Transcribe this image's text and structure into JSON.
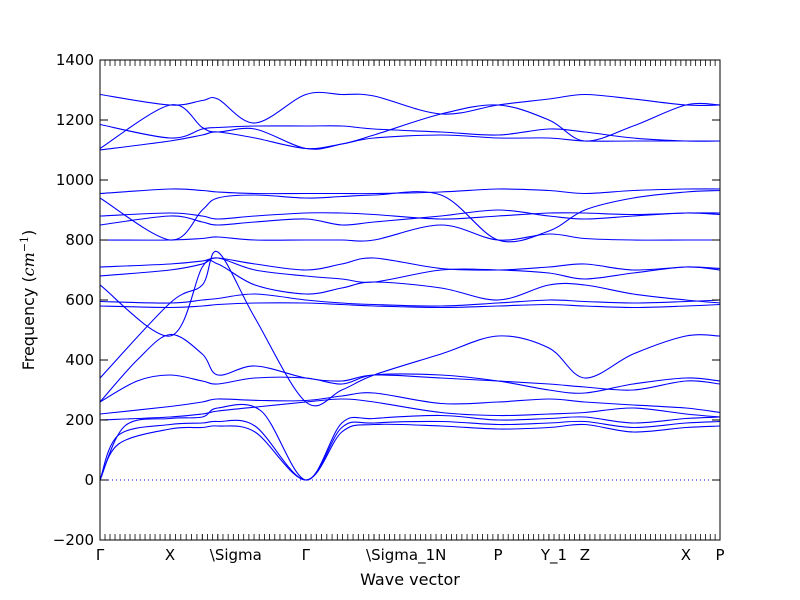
{
  "chart_data": {
    "type": "line",
    "title": "",
    "xlabel": "Wave vector",
    "ylabel": "Frequency ($cm^{-1}$)",
    "ylabel_text": "Frequency (",
    "ylabel_math": "cm",
    "ylabel_sup": "−1",
    "ylabel_close": ")",
    "ylim": [
      -200,
      1400
    ],
    "yticks": [
      -200,
      0,
      200,
      400,
      600,
      800,
      1000,
      1200,
      1400
    ],
    "xlim": [
      0,
      1
    ],
    "grid": false,
    "line_color": "#0000ff",
    "zero_line_color": "#0000ff",
    "high_symmetry_points": [
      {
        "label": "Γ",
        "x": 0.0
      },
      {
        "label": "X",
        "x": 0.113
      },
      {
        "label": "\\Sigma",
        "x": 0.19
      },
      {
        "label": "Γ",
        "x": 0.332
      },
      {
        "label": "\\Sigma_1N",
        "x": 0.442
      },
      {
        "label": "P",
        "x": 0.642
      },
      {
        "label": "Y_1",
        "x": 0.724
      },
      {
        "label": "Z",
        "x": 0.782
      },
      {
        "label": "X",
        "x": 0.945
      },
      {
        "label": "P",
        "x": 1.0
      }
    ],
    "segment_boundaries": [
      0.0,
      0.113,
      0.165,
      0.19,
      0.332,
      0.442,
      0.642,
      0.724,
      0.782,
      0.945,
      1.0
    ],
    "series": [
      {
        "x": [
          0,
          0.03,
          0.113,
          0.165,
          0.19,
          0.25,
          0.332,
          0.39,
          0.442,
          0.55,
          0.642,
          0.724,
          0.782,
          0.86,
          0.945,
          1.0
        ],
        "values": [
          0,
          120,
          170,
          175,
          180,
          160,
          0,
          160,
          185,
          180,
          170,
          175,
          185,
          160,
          175,
          180
        ]
      },
      {
        "x": [
          0,
          0.03,
          0.113,
          0.165,
          0.19,
          0.25,
          0.332,
          0.39,
          0.442,
          0.55,
          0.642,
          0.724,
          0.782,
          0.86,
          0.945,
          1.0
        ],
        "values": [
          0,
          150,
          185,
          190,
          195,
          180,
          0,
          175,
          190,
          195,
          185,
          190,
          195,
          175,
          190,
          195
        ]
      },
      {
        "x": [
          0,
          0.04,
          0.113,
          0.165,
          0.19,
          0.26,
          0.332,
          0.39,
          0.442,
          0.55,
          0.642,
          0.724,
          0.782,
          0.86,
          0.945,
          1.0
        ],
        "values": [
          0,
          180,
          205,
          210,
          240,
          230,
          0,
          190,
          205,
          215,
          200,
          205,
          210,
          190,
          205,
          210
        ]
      },
      {
        "x": [
          0,
          0.113,
          0.165,
          0.19,
          0.26,
          0.332,
          0.39,
          0.442,
          0.55,
          0.642,
          0.724,
          0.782,
          0.86,
          0.945,
          1.0
        ],
        "values": [
          200,
          210,
          220,
          230,
          245,
          260,
          270,
          260,
          225,
          215,
          220,
          225,
          240,
          220,
          210
        ]
      },
      {
        "x": [
          0,
          0.113,
          0.165,
          0.19,
          0.26,
          0.332,
          0.39,
          0.442,
          0.55,
          0.642,
          0.724,
          0.782,
          0.86,
          0.945,
          1.0
        ],
        "values": [
          220,
          245,
          260,
          270,
          265,
          265,
          280,
          290,
          255,
          260,
          270,
          260,
          250,
          240,
          225
        ]
      },
      {
        "x": [
          0,
          0.06,
          0.113,
          0.165,
          0.19,
          0.25,
          0.332,
          0.39,
          0.442,
          0.55,
          0.642,
          0.724,
          0.782,
          0.86,
          0.945,
          1.0
        ],
        "values": [
          260,
          400,
          485,
          420,
          350,
          380,
          340,
          330,
          350,
          340,
          330,
          320,
          310,
          300,
          330,
          320
        ]
      },
      {
        "x": [
          0,
          0.06,
          0.113,
          0.165,
          0.19,
          0.25,
          0.332,
          0.39,
          0.442,
          0.55,
          0.642,
          0.724,
          0.782,
          0.86,
          0.945,
          1.0
        ],
        "values": [
          260,
          330,
          350,
          330,
          320,
          340,
          340,
          320,
          350,
          350,
          330,
          300,
          290,
          320,
          340,
          330
        ]
      },
      {
        "x": [
          0,
          0.113,
          0.165,
          0.19,
          0.25,
          0.332,
          0.39,
          0.442,
          0.55,
          0.642,
          0.724,
          0.782,
          0.86,
          0.945,
          1.0
        ],
        "values": [
          340,
          590,
          650,
          760,
          540,
          260,
          300,
          350,
          420,
          480,
          440,
          340,
          420,
          480,
          480
        ]
      },
      {
        "x": [
          0,
          0.113,
          0.165,
          0.19,
          0.25,
          0.332,
          0.39,
          0.442,
          0.55,
          0.642,
          0.724,
          0.782,
          0.86,
          0.945,
          1.0
        ],
        "values": [
          580,
          575,
          580,
          585,
          590,
          590,
          585,
          580,
          575,
          580,
          585,
          580,
          575,
          580,
          585
        ]
      },
      {
        "x": [
          0,
          0.113,
          0.165,
          0.19,
          0.25,
          0.332,
          0.39,
          0.442,
          0.55,
          0.642,
          0.724,
          0.782,
          0.86,
          0.945,
          1.0
        ],
        "values": [
          595,
          590,
          600,
          605,
          620,
          600,
          590,
          585,
          580,
          590,
          600,
          595,
          590,
          595,
          600
        ]
      },
      {
        "x": [
          0,
          0.113,
          0.165,
          0.19,
          0.25,
          0.332,
          0.39,
          0.442,
          0.55,
          0.642,
          0.724,
          0.782,
          0.86,
          0.945,
          1.0
        ],
        "values": [
          650,
          480,
          710,
          720,
          650,
          620,
          640,
          660,
          640,
          600,
          650,
          650,
          620,
          600,
          590
        ]
      },
      {
        "x": [
          0,
          0.113,
          0.165,
          0.19,
          0.25,
          0.332,
          0.39,
          0.442,
          0.55,
          0.642,
          0.724,
          0.782,
          0.86,
          0.945,
          1.0
        ],
        "values": [
          680,
          700,
          720,
          740,
          700,
          680,
          670,
          660,
          700,
          700,
          690,
          670,
          690,
          710,
          700
        ]
      },
      {
        "x": [
          0,
          0.113,
          0.165,
          0.19,
          0.25,
          0.332,
          0.39,
          0.442,
          0.55,
          0.642,
          0.724,
          0.782,
          0.86,
          0.945,
          1.0
        ],
        "values": [
          710,
          720,
          730,
          740,
          720,
          700,
          720,
          740,
          705,
          700,
          710,
          720,
          700,
          710,
          705
        ]
      },
      {
        "x": [
          0,
          0.113,
          0.165,
          0.19,
          0.25,
          0.332,
          0.39,
          0.442,
          0.55,
          0.642,
          0.724,
          0.782,
          0.86,
          0.945,
          1.0
        ],
        "values": [
          800,
          800,
          805,
          810,
          800,
          800,
          800,
          800,
          850,
          800,
          820,
          805,
          800,
          800,
          800
        ]
      },
      {
        "x": [
          0,
          0.113,
          0.165,
          0.19,
          0.25,
          0.332,
          0.39,
          0.442,
          0.55,
          0.642,
          0.724,
          0.782,
          0.86,
          0.945,
          1.0
        ],
        "values": [
          850,
          880,
          860,
          850,
          860,
          870,
          850,
          860,
          880,
          900,
          880,
          870,
          880,
          890,
          885
        ]
      },
      {
        "x": [
          0,
          0.113,
          0.165,
          0.19,
          0.25,
          0.332,
          0.39,
          0.442,
          0.55,
          0.642,
          0.724,
          0.782,
          0.86,
          0.945,
          1.0
        ],
        "values": [
          880,
          890,
          880,
          870,
          880,
          890,
          890,
          885,
          870,
          880,
          890,
          890,
          885,
          890,
          890
        ]
      },
      {
        "x": [
          0,
          0.113,
          0.165,
          0.19,
          0.25,
          0.332,
          0.39,
          0.442,
          0.55,
          0.642,
          0.724,
          0.782,
          0.86,
          0.945,
          1.0
        ],
        "values": [
          940,
          800,
          900,
          940,
          950,
          940,
          945,
          950,
          950,
          800,
          830,
          900,
          940,
          960,
          965
        ]
      },
      {
        "x": [
          0,
          0.113,
          0.165,
          0.19,
          0.25,
          0.332,
          0.39,
          0.442,
          0.55,
          0.642,
          0.724,
          0.782,
          0.86,
          0.945,
          1.0
        ],
        "values": [
          955,
          970,
          965,
          960,
          955,
          955,
          955,
          955,
          960,
          970,
          965,
          955,
          965,
          970,
          970
        ]
      },
      {
        "x": [
          0,
          0.113,
          0.165,
          0.19,
          0.25,
          0.332,
          0.39,
          0.442,
          0.55,
          0.642,
          0.724,
          0.782,
          0.86,
          0.945,
          1.0
        ],
        "values": [
          1100,
          1130,
          1150,
          1160,
          1140,
          1105,
          1120,
          1140,
          1150,
          1140,
          1140,
          1130,
          1130,
          1130,
          1130
        ]
      },
      {
        "x": [
          0,
          0.113,
          0.165,
          0.19,
          0.25,
          0.332,
          0.39,
          0.442,
          0.55,
          0.642,
          0.724,
          0.782,
          0.86,
          0.945,
          1.0
        ],
        "values": [
          1105,
          1250,
          1175,
          1160,
          1170,
          1105,
          1120,
          1150,
          1220,
          1250,
          1200,
          1130,
          1180,
          1250,
          1250
        ]
      },
      {
        "x": [
          0,
          0.113,
          0.165,
          0.19,
          0.25,
          0.332,
          0.39,
          0.442,
          0.55,
          0.642,
          0.724,
          0.782,
          0.86,
          0.945,
          1.0
        ],
        "values": [
          1185,
          1140,
          1170,
          1175,
          1180,
          1180,
          1180,
          1170,
          1160,
          1150,
          1170,
          1160,
          1140,
          1130,
          1130
        ]
      },
      {
        "x": [
          0,
          0.113,
          0.165,
          0.19,
          0.25,
          0.332,
          0.39,
          0.442,
          0.55,
          0.642,
          0.724,
          0.782,
          0.86,
          0.945,
          1.0
        ],
        "values": [
          1285,
          1250,
          1265,
          1270,
          1190,
          1285,
          1285,
          1280,
          1220,
          1250,
          1270,
          1285,
          1270,
          1250,
          1250
        ]
      }
    ]
  }
}
